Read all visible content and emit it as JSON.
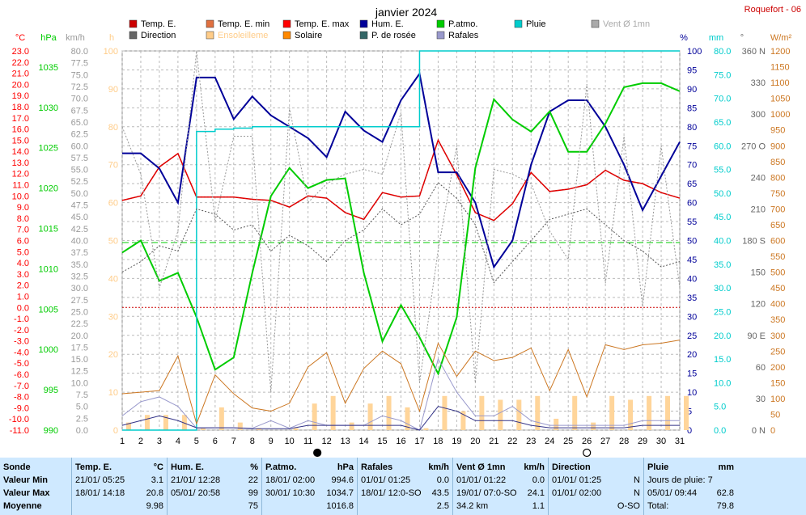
{
  "title": "janvier 2024",
  "station": "Roquefort - 06",
  "legend": [
    {
      "label": "Temp. E.",
      "color": "#cc0000"
    },
    {
      "label": "Temp. E. min",
      "color": "#e07040"
    },
    {
      "label": "Temp. E. max",
      "color": "#ff0000"
    },
    {
      "label": "Hum. E.",
      "color": "#000099"
    },
    {
      "label": "P.atmo.",
      "color": "#00cc00"
    },
    {
      "label": "Pluie",
      "color": "#00cccc"
    },
    {
      "label": "Vent Ø 1mn",
      "color": "#aaaaaa"
    },
    {
      "label": "Direction",
      "color": "#666666"
    },
    {
      "label": "Ensoleilleme",
      "color": "#ffcc88"
    },
    {
      "label": "Solaire",
      "color": "#ff8800"
    },
    {
      "label": "P. de rosée",
      "color": "#336666"
    },
    {
      "label": "Rafales",
      "color": "#9999cc"
    }
  ],
  "axis_units": {
    "temp": "°C",
    "press": "hPa",
    "wind": "km/h",
    "sun": "h",
    "hum": "%",
    "rain": "mm",
    "dir": "°",
    "solar": "W/m²"
  },
  "chart_data": {
    "type": "line",
    "title": "janvier 2024",
    "x": [
      1,
      2,
      3,
      4,
      5,
      6,
      7,
      8,
      9,
      10,
      11,
      12,
      13,
      14,
      15,
      16,
      17,
      18,
      19,
      20,
      21,
      22,
      23,
      24,
      25,
      26,
      27,
      28,
      29,
      30,
      31
    ],
    "axes": {
      "temp": {
        "unit": "°C",
        "ylim": [
          -11,
          23
        ],
        "ticks": [
          23.0,
          22.0,
          21.0,
          20.0,
          19.0,
          18.0,
          17.0,
          16.0,
          15.0,
          14.0,
          13.0,
          12.0,
          11.0,
          10.0,
          9.0,
          8.0,
          7.0,
          6.0,
          5.0,
          4.0,
          3.0,
          2.0,
          1.0,
          0.0,
          -1.0,
          -2.0,
          -3.0,
          -4.0,
          -5.0,
          -6.0,
          -7.0,
          -8.0,
          -9.0,
          -10.0,
          -11.0
        ]
      },
      "press": {
        "unit": "hPa",
        "ylim": [
          990,
          1037
        ],
        "ticks": [
          990,
          995,
          1000,
          1005,
          1010,
          1015,
          1020,
          1025,
          1030,
          1035
        ]
      },
      "wind": {
        "unit": "km/h",
        "ylim": [
          0,
          80
        ],
        "ticks": [
          0.0,
          2.5,
          5.0,
          7.5,
          10.0,
          12.5,
          15.0,
          17.5,
          20.0,
          22.5,
          25.0,
          27.5,
          30.0,
          32.5,
          35.0,
          37.5,
          40.0,
          42.5,
          45.0,
          47.5,
          50.0,
          52.5,
          55.0,
          57.5,
          60.0,
          62.5,
          65.0,
          67.5,
          70.0,
          72.5,
          75.0,
          77.5,
          80.0
        ]
      },
      "sun": {
        "unit": "h",
        "ylim": [
          0,
          100
        ],
        "ticks": [
          0,
          10,
          20,
          30,
          40,
          50,
          60,
          70,
          80,
          90,
          100
        ]
      },
      "hum": {
        "unit": "%",
        "ylim": [
          0,
          100
        ],
        "ticks": [
          0,
          5,
          10,
          15,
          20,
          25,
          30,
          35,
          40,
          45,
          50,
          55,
          60,
          65,
          70,
          75,
          80,
          85,
          90,
          95,
          100
        ]
      },
      "rain": {
        "unit": "mm",
        "ylim": [
          0,
          80
        ],
        "ticks": [
          0.0,
          5.0,
          10.0,
          15.0,
          20.0,
          25.0,
          30.0,
          35.0,
          40.0,
          45.0,
          50.0,
          55.0,
          60.0,
          65.0,
          70.0,
          75.0,
          80.0
        ]
      },
      "dir": {
        "unit": "°",
        "ylim": [
          0,
          360
        ],
        "ticks": [
          {
            "v": 0,
            "l": "0 N"
          },
          {
            "v": 30,
            "l": "30"
          },
          {
            "v": 60,
            "l": "60"
          },
          {
            "v": 90,
            "l": "90 E"
          },
          {
            "v": 120,
            "l": "120"
          },
          {
            "v": 150,
            "l": "150"
          },
          {
            "v": 180,
            "l": "180 S"
          },
          {
            "v": 210,
            "l": "210"
          },
          {
            "v": 240,
            "l": "240"
          },
          {
            "v": 270,
            "l": "270 O"
          },
          {
            "v": 300,
            "l": "300"
          },
          {
            "v": 330,
            "l": "330"
          },
          {
            "v": 360,
            "l": "360 N"
          }
        ]
      },
      "solar": {
        "unit": "W/m²",
        "ylim": [
          0,
          1200
        ],
        "ticks": [
          0,
          50,
          100,
          150,
          200,
          250,
          300,
          350,
          400,
          450,
          500,
          550,
          600,
          650,
          700,
          750,
          800,
          850,
          900,
          950,
          1000,
          1050,
          1100,
          1150,
          1200
        ]
      }
    },
    "series": [
      {
        "name": "Temp. E.",
        "axis": "temp",
        "color": "#cc0000",
        "width": 1.5,
        "values": [
          9.6,
          10.0,
          12.6,
          13.8,
          9.9,
          9.9,
          9.9,
          9.7,
          9.6,
          9.0,
          10.0,
          9.8,
          8.5,
          7.9,
          10.3,
          9.9,
          10.0,
          15.0,
          11.9,
          8.5,
          7.8,
          9.3,
          12.1,
          10.4,
          10.6,
          11.0,
          12.3,
          11.4,
          11.1,
          10.3,
          9.8
        ]
      },
      {
        "name": "Temp. E. max",
        "axis": "temp",
        "color": "#ff0000",
        "width": 1,
        "dash": "2,2",
        "values": [
          9.6,
          10.0,
          12.6,
          13.8,
          9.9,
          9.9,
          9.9,
          9.7,
          9.6,
          9.0,
          10.0,
          9.8,
          8.5,
          7.9,
          10.3,
          9.9,
          10.0,
          15.0,
          11.9,
          8.5,
          7.8,
          9.3,
          12.1,
          10.4,
          10.6,
          11.0,
          12.3,
          11.4,
          11.1,
          10.3,
          9.8
        ]
      },
      {
        "name": "Hum. E.",
        "axis": "hum",
        "color": "#000099",
        "width": 2,
        "values": [
          73,
          73,
          69,
          60,
          93,
          93,
          82,
          88,
          83,
          80,
          77,
          72,
          84,
          79,
          76,
          87,
          94,
          68,
          68,
          60,
          43,
          50,
          70,
          84,
          87,
          87,
          80,
          70,
          58,
          67,
          76
        ]
      },
      {
        "name": "P.atmo.",
        "axis": "press",
        "color": "#00cc00",
        "width": 2,
        "values": [
          1012.0,
          1013.5,
          1008.5,
          1009.5,
          1004.0,
          997.5,
          999.0,
          1009.5,
          1019.0,
          1022.5,
          1020.0,
          1021.0,
          1021.2,
          1009.5,
          1001.0,
          1005.5,
          1001.5,
          997.0,
          1004.0,
          1022.5,
          1031.0,
          1028.5,
          1027.0,
          1029.5,
          1024.5,
          1024.5,
          1028.0,
          1032.5,
          1033.0,
          1033.0,
          1032.0
        ]
      },
      {
        "name": "Pluie",
        "axis": "rain",
        "color": "#00cccc",
        "width": 1.5,
        "step": true,
        "values": [
          0,
          0,
          0,
          0,
          63,
          63.5,
          63.7,
          64,
          64,
          64,
          64,
          64,
          64,
          64,
          64,
          64,
          80,
          80,
          80,
          80,
          80,
          80,
          80,
          80,
          80,
          80,
          80,
          80,
          80,
          80,
          80
        ]
      },
      {
        "name": "Vent Ø 1mn",
        "axis": "wind",
        "color": "#999999",
        "width": 1,
        "dash": "2,2",
        "values": [
          64,
          54,
          30,
          42,
          80,
          44,
          62,
          62,
          8,
          68,
          48,
          52,
          54,
          55,
          54,
          67,
          10,
          38,
          60,
          10,
          55,
          54,
          52,
          42,
          36,
          73,
          31,
          62,
          26,
          60,
          30
        ]
      },
      {
        "name": "Direction",
        "axis": "dir",
        "color": "#555555",
        "width": 1,
        "dash": "2,2",
        "values": [
          150,
          160,
          175,
          170,
          210,
          205,
          190,
          195,
          170,
          185,
          175,
          160,
          180,
          190,
          210,
          195,
          205,
          235,
          220,
          195,
          140,
          160,
          180,
          200,
          205,
          210,
          195,
          180,
          170,
          155,
          160
        ]
      },
      {
        "name": "Solaire",
        "axis": "solar",
        "color": "#cc7722",
        "width": 1,
        "values": [
          115,
          120,
          125,
          235,
          20,
          175,
          115,
          70,
          60,
          85,
          200,
          245,
          85,
          195,
          250,
          210,
          60,
          275,
          170,
          250,
          220,
          230,
          260,
          125,
          255,
          105,
          270,
          255,
          270,
          275,
          285
        ]
      },
      {
        "name": "Rafales",
        "axis": "wind",
        "color": "#9999cc",
        "width": 1,
        "values": [
          3,
          6,
          7,
          5,
          0.4,
          0.5,
          0.5,
          0.4,
          2,
          0.4,
          2,
          1,
          1,
          1,
          3,
          2,
          0,
          15,
          8,
          3,
          3,
          5,
          2,
          1,
          1,
          1,
          1,
          1,
          2,
          2,
          2
        ]
      },
      {
        "name": "P. de rosée",
        "axis": "wind",
        "color": "#333388",
        "width": 1,
        "values": [
          1,
          2,
          3,
          2,
          0.5,
          0.5,
          0.5,
          0.3,
          0.3,
          0.3,
          1,
          1,
          1,
          1,
          1,
          1,
          0,
          5,
          4,
          2,
          2,
          2,
          1,
          0.5,
          0.5,
          0.5,
          0.5,
          0.5,
          1,
          1,
          1
        ]
      }
    ],
    "sunshine_bars": {
      "name": "Ensoleilleme",
      "axis": "sun",
      "color": "#ffd59a",
      "values": [
        2,
        4,
        4,
        4,
        0.5,
        6,
        2,
        0.5,
        0,
        0.5,
        7,
        9,
        2,
        7,
        9,
        6,
        0.5,
        9,
        5,
        9,
        8,
        8,
        9,
        3,
        9,
        2,
        9,
        8,
        9,
        9,
        9
      ]
    },
    "threshold_lines": [
      {
        "axis": "temp",
        "value": 0,
        "color": "#cc0000"
      },
      {
        "axis": "press",
        "value": 1013.25,
        "color": "#00cc00"
      }
    ],
    "moon_phases": [
      {
        "day": 11.5,
        "phase": "new"
      },
      {
        "day": 26,
        "phase": "full"
      }
    ],
    "grid": true
  },
  "stats": {
    "cols": [
      {
        "head": "Sonde",
        "unit": "",
        "rows": [
          "Valeur Min",
          "Valeur Max",
          "Moyenne"
        ]
      },
      {
        "head": "Temp. E.",
        "unit": "°C",
        "rows": [
          {
            "d": "21/01/ 05:25",
            "v": "3.1"
          },
          {
            "d": "18/01/ 14:18",
            "v": "20.8"
          },
          {
            "d": "",
            "v": "9.98"
          }
        ]
      },
      {
        "head": "Hum. E.",
        "unit": "%",
        "rows": [
          {
            "d": "21/01/ 12:28",
            "v": "22"
          },
          {
            "d": "05/01/ 20:58",
            "v": "99"
          },
          {
            "d": "",
            "v": "75"
          }
        ]
      },
      {
        "head": "P.atmo.",
        "unit": "hPa",
        "rows": [
          {
            "d": "18/01/ 02:00",
            "v": "994.6"
          },
          {
            "d": "30/01/ 10:30",
            "v": "1034.7"
          },
          {
            "d": "",
            "v": "1016.8"
          }
        ]
      },
      {
        "head": "Rafales",
        "unit": "km/h",
        "rows": [
          {
            "d": "01/01/ 01:25",
            "v": "0.0"
          },
          {
            "d": "18/01/ 12:0-SO",
            "v": "43.5"
          },
          {
            "d": "",
            "v": "2.5"
          }
        ]
      },
      {
        "head": "Vent Ø 1mn",
        "unit": "km/h",
        "rows": [
          {
            "d": "01/01/ 01:22",
            "v": "0.0"
          },
          {
            "d": "19/01/ 07:0-SO",
            "v": "24.1"
          },
          {
            "d": "34.2 km",
            "v": "1.1"
          }
        ]
      },
      {
        "head": "Direction",
        "unit": "",
        "rows": [
          {
            "d": "01/01/ 01:25",
            "v": "N"
          },
          {
            "d": "01/01/ 02:00",
            "v": "N"
          },
          {
            "d": "",
            "v": "O-SO"
          }
        ]
      },
      {
        "head": "Pluie",
        "unit": "mm",
        "rows": [
          {
            "d": "Jours de pluie: 7",
            "v": ""
          },
          {
            "d": "05/01/ 09:44",
            "v": "62.8"
          },
          {
            "d": "Total:",
            "v": "79.8"
          }
        ]
      }
    ]
  }
}
